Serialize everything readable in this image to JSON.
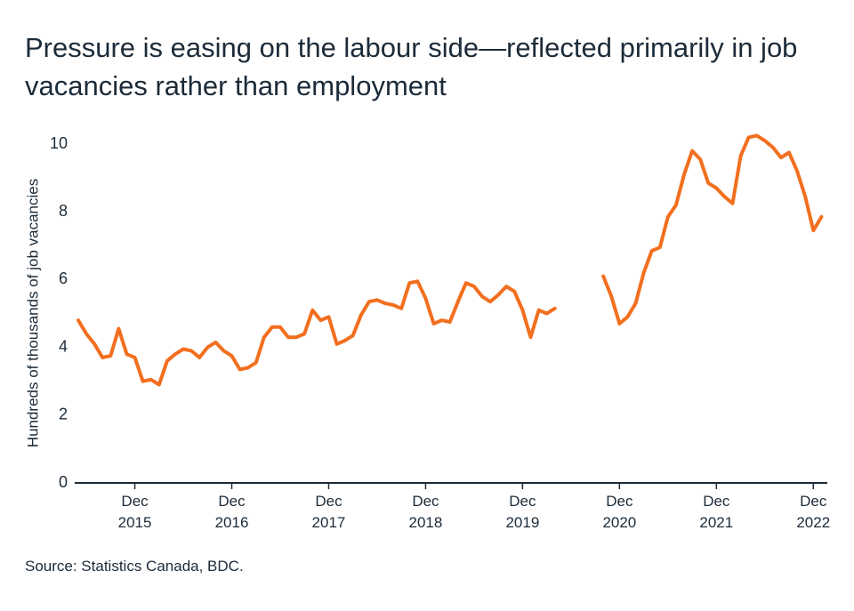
{
  "chart_data": {
    "type": "line",
    "title": "Pressure is easing on the labour side—reflected primarily in job vacancies rather than employment",
    "y_label": "Hundreds of thousands of job vacancies",
    "source": "Source: Statistics Canada, BDC.",
    "color": "#f26f1f",
    "categories": [
      null,
      null,
      null,
      null,
      null,
      null,
      null,
      "Dec 2015",
      null,
      null,
      null,
      null,
      null,
      null,
      null,
      null,
      null,
      null,
      null,
      "Dec 2016",
      null,
      null,
      null,
      null,
      null,
      null,
      null,
      null,
      null,
      null,
      null,
      "Dec 2017",
      null,
      null,
      null,
      null,
      null,
      null,
      null,
      null,
      null,
      null,
      null,
      "Dec 2018",
      null,
      null,
      null,
      null,
      null,
      null,
      null,
      null,
      null,
      null,
      null,
      "Dec 2019",
      null,
      null,
      null,
      null,
      null,
      null,
      null,
      null,
      null,
      null,
      null,
      "Dec 2020",
      null,
      null,
      null,
      null,
      null,
      null,
      null,
      null,
      null,
      null,
      null,
      "Dec 2021",
      null,
      null,
      null,
      null,
      null,
      null,
      null,
      null,
      null,
      null,
      null,
      "Dec 2022",
      null
    ],
    "values": [
      4.8,
      4.4,
      4.1,
      3.7,
      3.75,
      4.55,
      3.8,
      3.7,
      3.0,
      3.05,
      2.9,
      3.6,
      3.8,
      3.95,
      3.9,
      3.7,
      4.0,
      4.15,
      3.9,
      3.75,
      3.35,
      3.4,
      3.55,
      4.3,
      4.6,
      4.6,
      4.3,
      4.3,
      4.4,
      5.1,
      4.8,
      4.9,
      4.1,
      4.2,
      4.35,
      4.95,
      5.35,
      5.4,
      5.3,
      5.25,
      5.15,
      5.9,
      5.95,
      5.45,
      4.7,
      4.8,
      4.75,
      5.35,
      5.9,
      5.8,
      5.5,
      5.35,
      5.55,
      5.8,
      5.65,
      5.1,
      4.3,
      5.1,
      5.0,
      5.15,
      null,
      null,
      null,
      null,
      null,
      6.1,
      5.5,
      4.7,
      4.9,
      5.3,
      6.2,
      6.85,
      6.95,
      7.85,
      8.2,
      9.1,
      9.8,
      9.55,
      8.85,
      8.7,
      8.45,
      8.25,
      9.65,
      10.2,
      10.25,
      10.1,
      9.9,
      9.6,
      9.75,
      9.2,
      8.45,
      7.45,
      7.85
    ],
    "ylim": [
      0,
      10.5
    ],
    "yticks": [
      0,
      2,
      4,
      6,
      8,
      10
    ]
  }
}
